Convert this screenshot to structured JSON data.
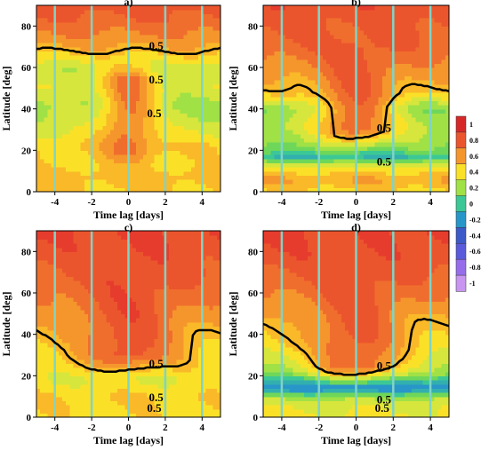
{
  "chart_data": {
    "type": "heatmap",
    "shared": {
      "xlabel": "Time lag [days]",
      "ylabel": "Latitude [deg]",
      "xlim": [
        -5,
        5
      ],
      "ylim": [
        0,
        90
      ],
      "xticks": [
        "-4",
        "-2",
        "0",
        "2",
        "4"
      ],
      "yticks": [
        "0",
        "20",
        "40",
        "60",
        "80"
      ],
      "vlines_x": [
        -4,
        -2,
        0,
        2,
        4
      ],
      "vline_color": "#7fd4c8",
      "contour_color": "#000000",
      "secondary_contour_color": "#e040e0",
      "colorbar": {
        "ticks": [
          "1",
          "0.8",
          "0.6",
          "0.4",
          "0.2",
          "0",
          "-0.2",
          "-0.4",
          "-0.6",
          "-0.8",
          "-1"
        ],
        "range": [
          -1,
          1
        ]
      }
    },
    "panels": [
      {
        "title": "a)",
        "contour_labels": [
          "0.5",
          "0.5",
          "0.5"
        ],
        "field": {
          "bands": [
            {
              "lat": 0,
              "v": 0.45
            },
            {
              "lat": 8,
              "v": 0.5
            },
            {
              "lat": 14,
              "v": 0.42
            },
            {
              "lat": 22,
              "v": 0.45
            },
            {
              "lat": 32,
              "v": 0.3
            },
            {
              "lat": 42,
              "v": 0.22
            },
            {
              "lat": 50,
              "v": 0.32
            },
            {
              "lat": 60,
              "v": 0.28
            },
            {
              "lat": 70,
              "v": 0.55
            },
            {
              "lat": 80,
              "v": 0.7
            },
            {
              "lat": 90,
              "v": 0.8
            }
          ],
          "peak_lag": 0,
          "peak_value": 0.72,
          "peak_lat": [
            20,
            55
          ],
          "peak_width_days": 1.4
        }
      },
      {
        "title": "b)",
        "contour_labels": [
          "0.5",
          "0.5"
        ],
        "field": {
          "bands": [
            {
              "lat": 0,
              "v": 0.42
            },
            {
              "lat": 6,
              "v": 0.55
            },
            {
              "lat": 12,
              "v": 0.38
            },
            {
              "lat": 17,
              "v": -0.05
            },
            {
              "lat": 20,
              "v": 0.1
            },
            {
              "lat": 25,
              "v": 0.2
            },
            {
              "lat": 32,
              "v": 0.25
            },
            {
              "lat": 40,
              "v": 0.15
            },
            {
              "lat": 48,
              "v": 0.45
            },
            {
              "lat": 58,
              "v": 0.58
            },
            {
              "lat": 70,
              "v": 0.72
            },
            {
              "lat": 90,
              "v": 0.82
            }
          ],
          "peak_lag": 0,
          "peak_value": 0.8,
          "peak_lat": [
            30,
            70
          ],
          "peak_width_days": 2.0
        }
      },
      {
        "title": "c)",
        "contour_labels": [
          "0.5",
          "0.5",
          "0.5"
        ],
        "field": {
          "bands": [
            {
              "lat": 0,
              "v": 0.42
            },
            {
              "lat": 10,
              "v": 0.45
            },
            {
              "lat": 18,
              "v": 0.35
            },
            {
              "lat": 25,
              "v": 0.4
            },
            {
              "lat": 32,
              "v": 0.42
            },
            {
              "lat": 42,
              "v": 0.5
            },
            {
              "lat": 55,
              "v": 0.62
            },
            {
              "lat": 70,
              "v": 0.75
            },
            {
              "lat": 90,
              "v": 0.85
            }
          ],
          "peak_lag": 0,
          "peak_value": 0.85,
          "peak_lat": [
            30,
            90
          ],
          "peak_width_days": 2.6
        }
      },
      {
        "title": "d)",
        "contour_labels": [
          "0.5",
          "0.5",
          "0.5"
        ],
        "field": {
          "bands": [
            {
              "lat": 0,
              "v": 0.38
            },
            {
              "lat": 6,
              "v": 0.32
            },
            {
              "lat": 10,
              "v": 0.2
            },
            {
              "lat": 14,
              "v": -0.25
            },
            {
              "lat": 18,
              "v": -0.05
            },
            {
              "lat": 22,
              "v": 0.2
            },
            {
              "lat": 28,
              "v": 0.3
            },
            {
              "lat": 36,
              "v": 0.42
            },
            {
              "lat": 48,
              "v": 0.5
            },
            {
              "lat": 60,
              "v": 0.65
            },
            {
              "lat": 75,
              "v": 0.8
            },
            {
              "lat": 90,
              "v": 0.88
            }
          ],
          "peak_lag": 0,
          "peak_value": 0.82,
          "peak_lat": [
            25,
            90
          ],
          "peak_width_days": 2.4
        }
      }
    ]
  }
}
